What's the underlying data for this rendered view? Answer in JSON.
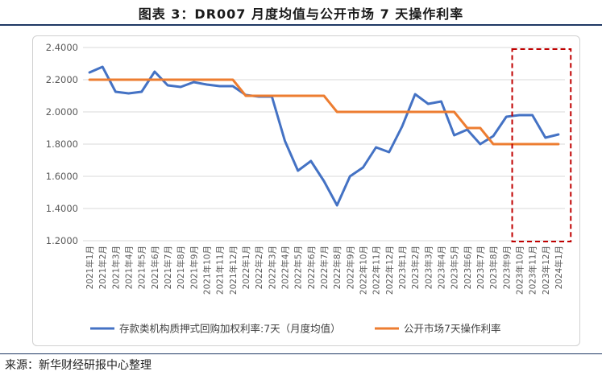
{
  "title": "图表 3：DR007 月度均值与公开市场 7 天操作利率",
  "source": "来源：新华财经研报中心整理",
  "colors": {
    "series1": "#4472c4",
    "series2": "#ed7d31",
    "highlight": "#c00000",
    "grid": "#d9d9d9",
    "axis_text": "#595959"
  },
  "chart_data": {
    "type": "line",
    "title": "图表 3：DR007 月度均值与公开市场 7 天操作利率",
    "xlabel": "",
    "ylabel": "",
    "ylim": [
      1.2,
      2.4
    ],
    "yticks": [
      "1.2000",
      "1.4000",
      "1.6000",
      "1.8000",
      "2.0000",
      "2.2000",
      "2.4000"
    ],
    "grid": true,
    "legend": "bottom",
    "categories": [
      "2021年1月",
      "2021年2月",
      "2021年3月",
      "2021年4月",
      "2021年5月",
      "2021年6月",
      "2021年7月",
      "2021年8月",
      "2021年9月",
      "2021年10月",
      "2021年11月",
      "2021年12月",
      "2022年1月",
      "2022年2月",
      "2022年3月",
      "2022年4月",
      "2022年5月",
      "2022年6月",
      "2022年7月",
      "2022年8月",
      "2022年9月",
      "2022年10月",
      "2022年11月",
      "2022年12月",
      "2023年1月",
      "2023年2月",
      "2023年3月",
      "2023年4月",
      "2023年5月",
      "2023年6月",
      "2023年7月",
      "2023年8月",
      "2023年9月",
      "2023年10月",
      "2023年11月",
      "2023年12月",
      "2024年1月"
    ],
    "series": [
      {
        "name": "存款类机构质押式回购加权利率:7天（月度均值）",
        "values": [
          2.245,
          2.28,
          2.125,
          2.115,
          2.125,
          2.25,
          2.165,
          2.155,
          2.185,
          2.17,
          2.16,
          2.16,
          2.105,
          2.095,
          2.095,
          1.82,
          1.635,
          1.695,
          1.57,
          1.42,
          1.6,
          1.655,
          1.78,
          1.75,
          1.91,
          2.11,
          2.05,
          2.065,
          1.855,
          1.89,
          1.8,
          1.85,
          1.97,
          1.98,
          1.98,
          1.84,
          1.86
        ]
      },
      {
        "name": "公开市场7天操作利率",
        "values": [
          2.2,
          2.2,
          2.2,
          2.2,
          2.2,
          2.2,
          2.2,
          2.2,
          2.2,
          2.2,
          2.2,
          2.2,
          2.1,
          2.1,
          2.1,
          2.1,
          2.1,
          2.1,
          2.1,
          2.0,
          2.0,
          2.0,
          2.0,
          2.0,
          2.0,
          2.0,
          2.0,
          2.0,
          2.0,
          1.9,
          1.9,
          1.8,
          1.8,
          1.8,
          1.8,
          1.8,
          1.8
        ]
      }
    ],
    "annotations": [
      {
        "type": "dashed-box",
        "from_category": "2023年10月",
        "to_category": "2024年1月"
      }
    ]
  }
}
